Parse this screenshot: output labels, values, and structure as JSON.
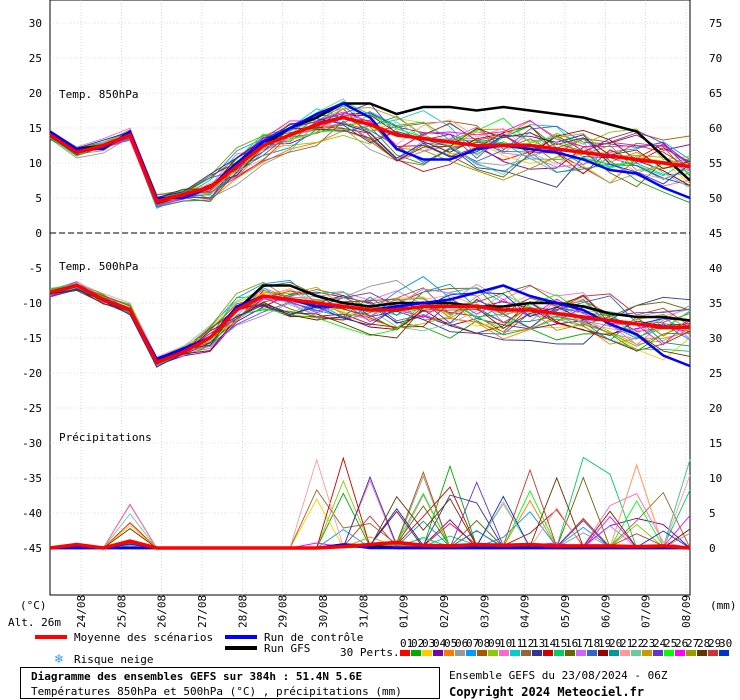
{
  "chart_data": {
    "type": "line",
    "x_ticks": [
      "24/08",
      "25/08",
      "26/08",
      "27/08",
      "28/08",
      "29/08",
      "30/08",
      "31/08",
      "01/09",
      "02/09",
      "03/09",
      "04/09",
      "05/09",
      "06/09",
      "07/09",
      "08/09"
    ],
    "left_axis": {
      "unit": "(°C)",
      "ticks": [
        30,
        25,
        20,
        15,
        10,
        5,
        0,
        -5,
        -10,
        -15,
        -20,
        -25,
        -30,
        -35,
        -40,
        -45
      ]
    },
    "right_axis": {
      "unit": "(mm)",
      "ticks": [
        75,
        70,
        65,
        60,
        55,
        50,
        45,
        40,
        35,
        30,
        25,
        20,
        15,
        10,
        5,
        0
      ]
    },
    "altitude_label": "Alt. 26m",
    "panels": {
      "t850": "Temp. 850hPa",
      "t500": "Temp. 500hPa",
      "precip": "Précipitations"
    },
    "legend": {
      "mean": "Moyenne des scénarios",
      "control": "Run de contrôle",
      "gfs": "Run GFS",
      "snow": "Risque neige",
      "perts": "30 Perts.",
      "member_labels": [
        "01",
        "02",
        "03",
        "04",
        "05",
        "06",
        "07",
        "08",
        "09",
        "10",
        "11",
        "12",
        "13",
        "14",
        "15",
        "16",
        "17",
        "18",
        "19",
        "20",
        "21",
        "22",
        "23",
        "24",
        "25",
        "26",
        "27",
        "28",
        "29",
        "30"
      ],
      "member_colors": [
        "#ff0000",
        "#00aa00",
        "#ffcc00",
        "#7700aa",
        "#ff7700",
        "#999999",
        "#0099ff",
        "#aa5500",
        "#88cc00",
        "#ff66cc",
        "#00cccc",
        "#996633",
        "#333399",
        "#cc0000",
        "#00cc66",
        "#666600",
        "#cc66ff",
        "#3366cc",
        "#990000",
        "#009999",
        "#ff9999",
        "#66cc99",
        "#cc9900",
        "#6633cc",
        "#00ff00",
        "#ff00ff",
        "#999900",
        "#663300",
        "#cc3333",
        "#0033cc"
      ],
      "mean_color": "#ff0000",
      "control_color": "#0000ff",
      "gfs_color": "#000000"
    },
    "series": [
      {
        "name": "Moyenne des scénarios",
        "t850": [
          14,
          11.5,
          12.5,
          14,
          4.5,
          5.5,
          6.5,
          9.5,
          12.5,
          14,
          15.5,
          16.5,
          15.5,
          14,
          13.5,
          13,
          12.5,
          12.5,
          12.5,
          12,
          11.5,
          11,
          10.5,
          10,
          9.5
        ],
        "t500": [
          -8.5,
          -7.5,
          -9.5,
          -11,
          -18.5,
          -17,
          -15,
          -11,
          -9,
          -9.5,
          -10,
          -10.5,
          -11,
          -11,
          -10.5,
          -10.5,
          -10.5,
          -11,
          -11,
          -11.5,
          -12,
          -12.5,
          -13,
          -13.5,
          -13.5
        ],
        "precip": [
          0,
          0.5,
          0,
          1,
          0,
          0,
          0,
          0,
          0,
          0,
          0,
          0.2,
          0.5,
          0.8,
          0.4,
          0.3,
          0.5,
          0.4,
          0.5,
          0.3,
          0.3,
          0.3,
          0.2,
          0.3,
          0
        ]
      },
      {
        "name": "Run de contrôle",
        "t850": [
          14.5,
          12,
          12,
          14.5,
          5,
          5,
          6.5,
          10,
          13,
          15,
          17,
          18.5,
          16.5,
          12,
          10.5,
          10.5,
          12,
          12.5,
          12,
          11.5,
          10.5,
          9,
          8.5,
          6.5,
          5
        ],
        "t500": [
          -8.5,
          -7.5,
          -9.5,
          -11,
          -18,
          -16.5,
          -15,
          -10.5,
          -9,
          -9.5,
          -10.5,
          -10.5,
          -11,
          -10.5,
          -10,
          -9.5,
          -8.5,
          -7.5,
          -9,
          -10,
          -11,
          -13,
          -14.5,
          -17.5,
          -19
        ],
        "precip": [
          0,
          0,
          0,
          0,
          0,
          0,
          0,
          0,
          0,
          0,
          0,
          0.5,
          0,
          0,
          0,
          0,
          0,
          0,
          0,
          0,
          0,
          0,
          0,
          0,
          0
        ]
      },
      {
        "name": "Run GFS",
        "t850": [
          14.5,
          12,
          12.5,
          14,
          4.5,
          5.5,
          6.5,
          10,
          12.5,
          15,
          16.5,
          18.5,
          18.5,
          17,
          18,
          18,
          17.5,
          18,
          17.5,
          17,
          16.5,
          15.5,
          14.5,
          11,
          7.5
        ],
        "t500": [
          -8.5,
          -7.5,
          -9.5,
          -11,
          -18.5,
          -16.5,
          -15,
          -11,
          -7.5,
          -7.5,
          -9,
          -10,
          -10.5,
          -10,
          -10,
          -10,
          -10.5,
          -10.5,
          -10,
          -10,
          -10.5,
          -11.5,
          -12,
          -12,
          -12.5
        ],
        "precip": [
          0,
          0,
          0,
          0,
          0,
          0,
          0,
          0,
          0,
          0,
          0,
          0.5,
          0.3,
          0,
          0,
          0,
          0,
          0,
          0,
          0,
          0,
          0,
          0,
          0,
          0
        ]
      }
    ],
    "ylim_left": [
      -45,
      30
    ],
    "ylim_right": [
      0,
      75
    ],
    "grid": true
  },
  "footer": {
    "title": "Diagramme des ensembles GEFS sur 384h : 51.4N 5.6E",
    "subtitle": "Températures 850hPa et 500hPa (°C) , précipitations (mm)",
    "run": "Ensemble GEFS du 23/08/2024 - 06Z",
    "copyright": "Copyright 2024 Meteociel.fr"
  }
}
